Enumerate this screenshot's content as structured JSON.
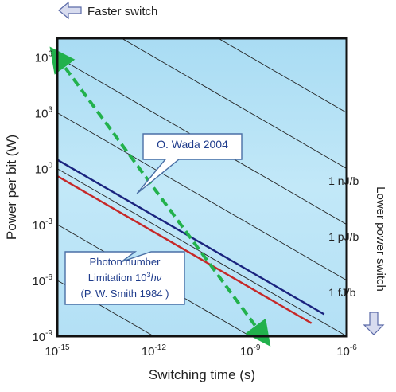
{
  "chart_data": {
    "type": "line",
    "xlabel": "Switching time (s)",
    "ylabel": "Power per bit (W)",
    "x_scale": "log",
    "y_scale": "log",
    "xlim": [
      1e-15,
      1e-06
    ],
    "ylim": [
      1e-09,
      10000000.0
    ],
    "x_ticks": [
      {
        "value": 1e-15,
        "base": "10",
        "exp": "-15"
      },
      {
        "value": 1e-12,
        "base": "10",
        "exp": "-12"
      },
      {
        "value": 1e-09,
        "base": "10",
        "exp": "-9"
      },
      {
        "value": 1e-06,
        "base": "10",
        "exp": "-6"
      }
    ],
    "y_ticks": [
      {
        "value": 1e-09,
        "base": "10",
        "exp": "-9"
      },
      {
        "value": 1e-06,
        "base": "10",
        "exp": "-6"
      },
      {
        "value": 0.001,
        "base": "10",
        "exp": "-3"
      },
      {
        "value": 1,
        "base": "10",
        "exp": "0"
      },
      {
        "value": 1000.0,
        "base": "10",
        "exp": "3"
      },
      {
        "value": 1000000.0,
        "base": "10",
        "exp": "6"
      }
    ],
    "grid": false,
    "background": "#bfe6f7",
    "energy_lines": [
      {
        "energy_J": 0.001
      },
      {
        "energy_J": 1e-06
      },
      {
        "energy_J": 1e-09
      },
      {
        "energy_J": 1e-12
      },
      {
        "energy_J": 1e-15
      },
      {
        "energy_J": 1e-18
      },
      {
        "energy_J": 1e-21
      }
    ],
    "energy_labels": [
      {
        "text": "1 nJ/b",
        "x": 1e-08,
        "y": 0.2
      },
      {
        "text": "1 pJ/b",
        "x": 1e-08,
        "y": 0.0002
      },
      {
        "text": "1 fJ/b",
        "x": 1e-08,
        "y": 2e-07
      }
    ],
    "series": [
      {
        "color": "#1a237e",
        "x": [
          1e-15,
          2e-07
        ],
        "y": [
          3.0,
          1.5e-08
        ]
      },
      {
        "color": "#c62828",
        "x": [
          1e-15,
          8e-08
        ],
        "y": [
          0.4,
          5e-09
        ]
      },
      {
        "color": "#22b14c",
        "dashed": true,
        "x": [
          1e-15,
          2.5e-09
        ],
        "y": [
          1000000.0,
          1e-09
        ]
      }
    ],
    "annotations": {
      "wada": {
        "text": "O. Wada 2004",
        "pointer_x": 3e-13,
        "pointer_y": 0.1
      },
      "smith": {
        "line1": "Photon number",
        "line2": "Limitation  10",
        "exp": "3",
        "hv": "hν",
        "line3": "(P. W. Smith 1984 )",
        "pointer_x": 1e-13,
        "pointer_y": 1e-05
      }
    },
    "side_labels": {
      "top": "Faster switch",
      "right": "Lower power switch"
    }
  }
}
